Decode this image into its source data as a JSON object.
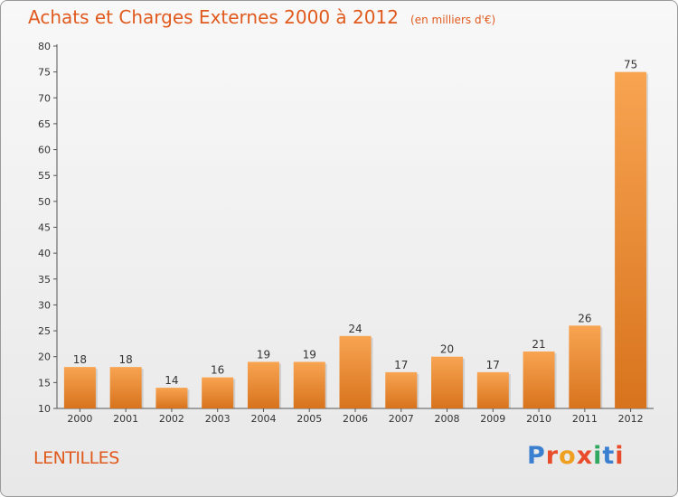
{
  "header": {
    "title": "Achats et Charges Externes 2000 à 2012",
    "subtitle": "(en milliers d'€)"
  },
  "footer": {
    "commune": "LENTILLES",
    "logo": [
      "P",
      "r",
      "o",
      "x",
      "i",
      "t",
      "i"
    ]
  },
  "colors": {
    "bar_top": "#f8a451",
    "bar_bottom": "#d8731d",
    "text_accent": "#e05a1e",
    "logo": [
      "#3a7fd0",
      "#e94c2a",
      "#f0a020",
      "#e94c2a",
      "#30a860",
      "#3a7fd0",
      "#e94c2a"
    ]
  },
  "chart_data": {
    "type": "bar",
    "title": "Achats et Charges Externes 2000 à 2012",
    "subtitle": "(en milliers d'€)",
    "categories": [
      "2000",
      "2001",
      "2002",
      "2003",
      "2004",
      "2005",
      "2006",
      "2007",
      "2008",
      "2009",
      "2010",
      "2011",
      "2012"
    ],
    "values": [
      18,
      18,
      14,
      16,
      19,
      19,
      24,
      17,
      20,
      17,
      21,
      26,
      75
    ],
    "ylim": [
      10,
      80
    ],
    "yticks": [
      10,
      15,
      20,
      25,
      30,
      35,
      40,
      45,
      50,
      55,
      60,
      65,
      70,
      75,
      80
    ],
    "grid": false,
    "xlabel": "",
    "ylabel": ""
  }
}
